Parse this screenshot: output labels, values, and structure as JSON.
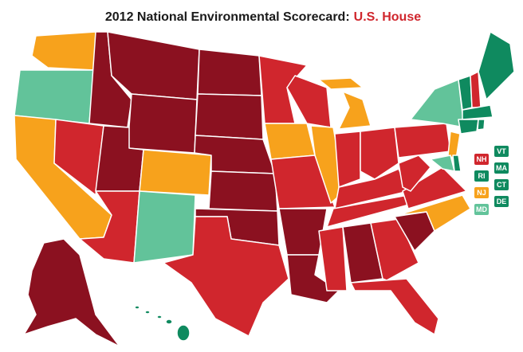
{
  "title": "2012 National Environmental Scorecard:",
  "title_highlight": "U.S. House",
  "title_color": "#1a1a1a",
  "highlight_color": "#d0262d",
  "small_state_labels": [
    {
      "label": "NH",
      "color": "#d0262d"
    },
    {
      "label": "VT",
      "color": "#0f8a5f"
    },
    {
      "label": "RI",
      "color": "#0f8a5f"
    },
    {
      "label": "MA",
      "color": "#0f8a5f"
    },
    {
      "label": "NJ",
      "color": "#f7a21c"
    },
    {
      "label": "CT",
      "color": "#0f8a5f"
    },
    {
      "label": "MD",
      "color": "#62c39a"
    },
    {
      "label": "DE",
      "color": "#0f8a5f"
    }
  ]
}
